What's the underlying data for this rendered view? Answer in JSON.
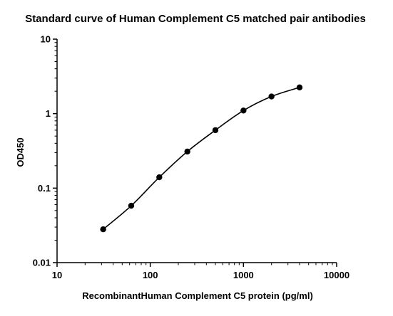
{
  "chart_data": {
    "type": "scatter",
    "title": "Standard curve of Human Complement C5 matched pair antibodies",
    "xlabel": "RecombinantHuman Complement C5 protein (pg/ml)",
    "ylabel": "OD450",
    "xscale": "log",
    "yscale": "log",
    "xlim": [
      10,
      10000
    ],
    "ylim": [
      0.01,
      10
    ],
    "x_ticks": [
      "10",
      "100",
      "1000",
      "10000"
    ],
    "y_ticks": [
      "0.01",
      "0.1",
      "1",
      "10"
    ],
    "grid": false,
    "fit_curve": true,
    "series": [
      {
        "x": [
          31.25,
          62.5,
          125,
          250,
          500,
          1000,
          2000,
          4000
        ],
        "y": [
          0.028,
          0.058,
          0.14,
          0.31,
          0.6,
          1.1,
          1.7,
          2.25
        ]
      }
    ],
    "colors": {
      "marker": "#000000",
      "line": "#000000",
      "background": "#ffffff"
    }
  }
}
